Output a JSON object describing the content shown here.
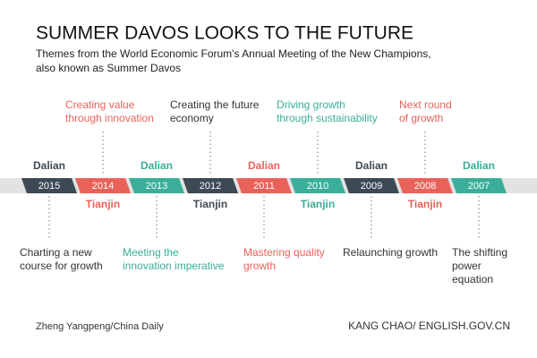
{
  "header": {
    "title": "SUMMER DAVOS LOOKS TO THE FUTURE",
    "subtitle": [
      "Themes from the World Economic Forum's Annual Meeting of the New Champions,",
      "also known as Summer Davos"
    ]
  },
  "timeline": [
    {
      "year": "2015",
      "city": "Dalian",
      "theme": [
        "Charting a new",
        "course for growth"
      ],
      "color": "#3d4954",
      "theme_color": "#333333"
    },
    {
      "year": "2014",
      "city": "Tianjin",
      "theme": [
        "Creating value",
        "through innovation"
      ],
      "color": "#e8625a",
      "theme_color": "#e8625a"
    },
    {
      "year": "2013",
      "city": "Dalian",
      "theme": [
        "Meeting the",
        "innovation imperative"
      ],
      "color": "#3aae98",
      "theme_color": "#3aae98"
    },
    {
      "year": "2012",
      "city": "Tianjin",
      "theme": [
        "Creating the future",
        "economy"
      ],
      "color": "#3d4954",
      "theme_color": "#333333"
    },
    {
      "year": "2011",
      "city": "Dalian",
      "theme": [
        "Mastering quality",
        "growth"
      ],
      "color": "#e8625a",
      "theme_color": "#e8625a"
    },
    {
      "year": "2010",
      "city": "Tianjin",
      "theme": [
        "Driving growth",
        "through sustainability"
      ],
      "color": "#3aae98",
      "theme_color": "#3aae98"
    },
    {
      "year": "2009",
      "city": "Dalian",
      "theme": [
        "Relaunching growth"
      ],
      "color": "#3d4954",
      "theme_color": "#333333"
    },
    {
      "year": "2008",
      "city": "Tianjin",
      "theme": [
        "Next round",
        "of growth"
      ],
      "color": "#e8625a",
      "theme_color": "#e8625a"
    },
    {
      "year": "2007",
      "city": "Dalian",
      "theme": [
        "The shifting",
        "power",
        "equation"
      ],
      "color": "#3aae98",
      "theme_color": "#333333"
    }
  ],
  "credits": {
    "left": "Zheng Yangpeng/China Daily",
    "right": "KANG CHAO/ ENGLISH.GOV.CN"
  }
}
